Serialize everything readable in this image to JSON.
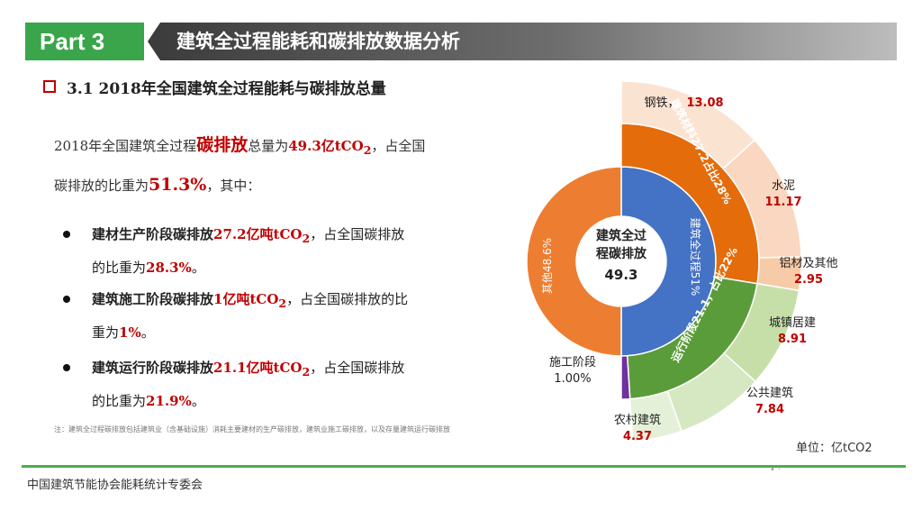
{
  "header": {
    "part": "Part 3",
    "title": "建筑全过程能耗和碳排放数据分析"
  },
  "section": {
    "title": "3.1 2018年全国建筑全过程能耗与碳排放总量"
  },
  "summary": {
    "line1_pre": "2018年全国建筑全过程",
    "line1_kw": "碳排放",
    "line1_mid": "总量为",
    "line1_val": "49.3亿tCO",
    "line1_sub": "2",
    "line1_post": "，占全国",
    "line2_pre": "碳排放的比重为",
    "line2_val": "51.3%",
    "line2_post": "，其中："
  },
  "items": [
    {
      "lead": "建材生产阶段碳排放",
      "val": "27.2亿吨tCO",
      "sub": "2",
      "mid": "，占全国碳排放",
      "tail_pre": "的比重为",
      "pct": "28.3%",
      "end": "。"
    },
    {
      "lead": "建筑施工阶段碳排放",
      "val": "1亿吨tCO",
      "sub": "2",
      "mid": "，占全国碳排放的比",
      "tail_pre": "重为",
      "pct": "1%",
      "end": "。"
    },
    {
      "lead": "建筑运行阶段碳排放",
      "val": "21.1亿吨tCO",
      "sub": "2",
      "mid": "，占全国碳排放",
      "tail_pre": "的比重为",
      "pct": "21.9%",
      "end": "。"
    }
  ],
  "note": "注：建筑全过程碳排放包括建筑业（含基础设施）消耗主要建材的生产碳排放，建筑业施工碳排放，以及存量建筑运行碳排放",
  "footer": "中国建筑节能协会能耗统计专委会",
  "unit": "单位：亿tCO2",
  "chart_data": {
    "type": "pie",
    "center": {
      "label1": "建筑全过",
      "label2": "程碳排放",
      "value": "49.3"
    },
    "inner": [
      {
        "name": "建筑全过程51%",
        "value": 51,
        "color": "#4472c4"
      },
      {
        "name": "其他48.6%",
        "value": 48.6,
        "color": "#ed7d31"
      }
    ],
    "middle": [
      {
        "name": "建筑材料27.2占比28%",
        "value": 27.2,
        "color": "#e46c0a"
      },
      {
        "name": "运行阶段21.1，占比22%",
        "value": 21.1,
        "color": "#5b9c3a"
      },
      {
        "name": "施工阶段",
        "value_label": "1.00%",
        "value": 1.0,
        "color": "#7030a0"
      }
    ],
    "outer": [
      {
        "name": "钢铁",
        "value": 13.08,
        "label": "13.08",
        "color": "#fbe3d2"
      },
      {
        "name": "水泥",
        "value": 11.17,
        "label": "11.17",
        "color": "#f9d7c0"
      },
      {
        "name": "铝材及其他",
        "value": 2.95,
        "label": "2.95",
        "color": "#f7caa8"
      },
      {
        "name": "城镇居建",
        "value": 8.91,
        "label": "8.91",
        "color": "#c6dfa8"
      },
      {
        "name": "公共建筑",
        "value": 7.84,
        "label": "7.84",
        "color": "#d6e8c2"
      },
      {
        "name": "农村建筑",
        "value": 4.37,
        "label": "4.37",
        "color": "#e5f0d8"
      }
    ]
  },
  "colors": {
    "accent_green": "#3aa54a",
    "emphasis_red": "#c00000"
  }
}
